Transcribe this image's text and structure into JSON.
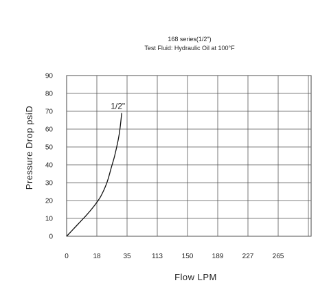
{
  "chart_data": {
    "type": "line",
    "title": "168 series(1/2\")",
    "subtitle": "Test Fluid: Hydraulic Oil at 100°F",
    "xlabel": "Flow LPM",
    "ylabel": "Pressure Drop psiD",
    "x_ticks": [
      "0",
      "18",
      "35",
      "113",
      "150",
      "189",
      "227",
      "265"
    ],
    "y_ticks": [
      0,
      10,
      20,
      30,
      40,
      50,
      60,
      70,
      80,
      90
    ],
    "ylim": [
      0,
      90
    ],
    "grid": true,
    "series": [
      {
        "name": "1/2\"",
        "x": [
          0,
          4,
          8,
          12,
          16,
          18,
          20,
          22,
          24,
          26,
          28,
          30,
          31,
          32
        ],
        "y": [
          0,
          4,
          8,
          12,
          16.5,
          19,
          22,
          26,
          31,
          38,
          45,
          54,
          60,
          69
        ]
      }
    ]
  }
}
